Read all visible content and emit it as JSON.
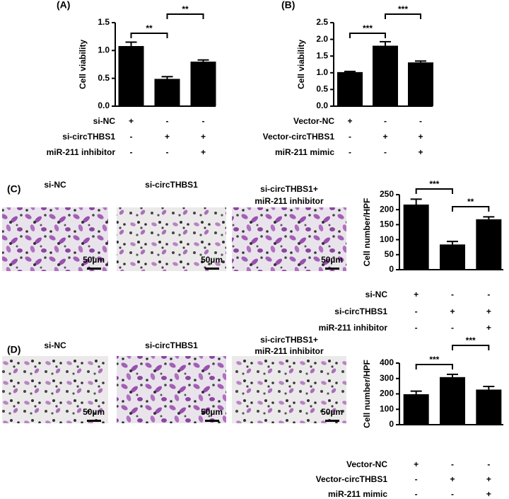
{
  "chart_data": [
    {
      "type": "bar",
      "panel": "(A)",
      "ylabel": "Cell viability",
      "categories": [
        null,
        null,
        null
      ],
      "values": [
        1.08,
        0.49,
        0.8
      ],
      "errors": [
        0.07,
        0.04,
        0.03
      ],
      "color": "#000000",
      "ylim": [
        0,
        1.5
      ],
      "yticks": [
        {
          "value": 0,
          "label": "0.0"
        },
        {
          "value": 0.5,
          "label": "0.5"
        },
        {
          "value": 1,
          "label": "1.0"
        },
        {
          "value": 1.5,
          "label": "1.5"
        }
      ],
      "annotations": [
        "**",
        "**"
      ],
      "conditions": [
        {
          "label": "si-NC",
          "signs": [
            "+",
            "-",
            "-"
          ]
        },
        {
          "label": "si-circTHBS1",
          "signs": [
            "-",
            "+",
            "+"
          ]
        },
        {
          "label": "miR-211 inhibitor",
          "signs": [
            "-",
            "-",
            "+"
          ]
        }
      ]
    },
    {
      "type": "bar",
      "panel": "(B)",
      "ylabel": "Cell viability",
      "categories": [
        null,
        null,
        null
      ],
      "values": [
        1.02,
        1.81,
        1.31
      ],
      "errors": [
        0.02,
        0.12,
        0.04
      ],
      "color": "#000000",
      "ylim": [
        0,
        2.5
      ],
      "yticks": [
        {
          "value": 0,
          "label": "0.0"
        },
        {
          "value": 0.5,
          "label": "0.5"
        },
        {
          "value": 1,
          "label": "1.0"
        },
        {
          "value": 1.5,
          "label": "1.5"
        },
        {
          "value": 2,
          "label": "2.0"
        },
        {
          "value": 2.5,
          "label": "2.5"
        }
      ],
      "annotations": [
        "***",
        "***"
      ],
      "conditions": [
        {
          "label": "Vector-NC",
          "signs": [
            "+",
            "-",
            "-"
          ]
        },
        {
          "label": "Vector-circTHBS1",
          "signs": [
            "-",
            "+",
            "+"
          ]
        },
        {
          "label": "miR-211 mimic",
          "signs": [
            "-",
            "-",
            "+"
          ]
        }
      ]
    },
    {
      "type": "bar",
      "ylabel": "Cell number/HPF",
      "categories": [
        null,
        null,
        null
      ],
      "values": [
        217,
        84,
        168
      ],
      "errors": [
        18,
        10,
        8
      ],
      "color": "#000000",
      "ylim": [
        0,
        250
      ],
      "yticks": [
        0,
        50,
        100,
        150,
        200,
        250
      ],
      "annotations": [
        "***",
        "**"
      ],
      "conditions": [
        {
          "label": "si-NC",
          "signs": [
            "+",
            "-",
            "-"
          ]
        },
        {
          "label": "si-circTHBS1",
          "signs": [
            "-",
            "+",
            "+"
          ]
        },
        {
          "label": "miR-211 inhibitor",
          "signs": [
            "-",
            "-",
            "+"
          ]
        }
      ]
    },
    {
      "type": "bar",
      "ylabel": "Cell number/HPF",
      "categories": [
        null,
        null,
        null
      ],
      "values": [
        198,
        309,
        228
      ],
      "errors": [
        20,
        18,
        20
      ],
      "color": "#000000",
      "ylim": [
        0,
        400
      ],
      "yticks": [
        0,
        100,
        200,
        300,
        400
      ],
      "annotations": [
        "***",
        "***"
      ],
      "conditions": [
        {
          "label": "Vector-NC",
          "signs": [
            "+",
            "-",
            "-"
          ]
        },
        {
          "label": "Vector-circTHBS1",
          "signs": [
            "-",
            "+",
            "+"
          ]
        },
        {
          "label": "miR-211 mimic",
          "signs": [
            "-",
            "-",
            "+"
          ]
        }
      ]
    }
  ],
  "micrographs": [
    {
      "panel": "(C)",
      "captions": [
        [
          "si-NC"
        ],
        [
          "si-circTHBS1"
        ],
        [
          "si-circTHBS1+",
          "miR-211 inhibitor"
        ]
      ],
      "scale_bar": "50µm"
    },
    {
      "panel": "(D)",
      "captions": [
        [
          "si-NC"
        ],
        [
          "si-circTHBS1"
        ],
        [
          "si-circTHBS1+",
          "miR-211 inhibitor"
        ]
      ],
      "scale_bar": "50µm"
    }
  ]
}
